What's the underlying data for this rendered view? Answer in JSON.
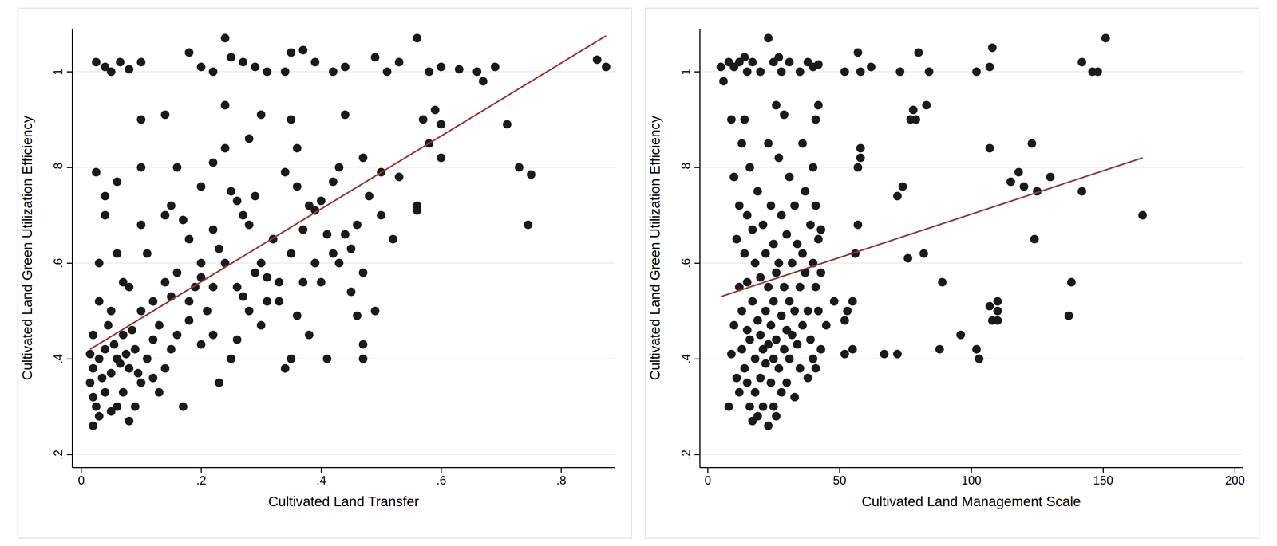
{
  "chart_data": [
    {
      "type": "scatter",
      "x_label": "Cultivated Land Transfer",
      "y_label": "Cultivated Land Green Utilization Efficiency",
      "xlim": [
        -0.015,
        0.89
      ],
      "ylim": [
        0.173,
        1.09
      ],
      "xticks": [
        0,
        {
          "value": 0.2,
          "label": ".2"
        },
        {
          "value": 0.4,
          "label": ".4"
        },
        {
          "value": 0.6,
          "label": ".6"
        },
        {
          "value": 0.8,
          "label": ".8"
        }
      ],
      "yticks": [
        {
          "value": 0.2,
          "label": ".2"
        },
        {
          "value": 0.4,
          "label": ".4"
        },
        {
          "value": 0.6,
          "label": ".6"
        },
        {
          "value": 0.8,
          "label": ".8"
        },
        1
      ],
      "grid": true,
      "series": [
        {
          "type": "scatter",
          "color": "#1a1a1a",
          "marker": "circle",
          "x": [
            0.025,
            0.04,
            0.05,
            0.065,
            0.08,
            0.1,
            0.18,
            0.2,
            0.22,
            0.24,
            0.25,
            0.27,
            0.29,
            0.31,
            0.34,
            0.35,
            0.37,
            0.39,
            0.42,
            0.44,
            0.49,
            0.51,
            0.53,
            0.56,
            0.58,
            0.6,
            0.63,
            0.66,
            0.67,
            0.69,
            0.86,
            0.875,
            0.025,
            0.04,
            0.04,
            0.06,
            0.1,
            0.1,
            0.14,
            0.16,
            0.24,
            0.24,
            0.3,
            0.35,
            0.36,
            0.44,
            0.57,
            0.59,
            0.6,
            0.71,
            0.73,
            0.75,
            0.745,
            0.58,
            0.6,
            0.56,
            0.56,
            0.53,
            0.5,
            0.47,
            0.43,
            0.28,
            0.22,
            0.03,
            0.06,
            0.07,
            0.08,
            0.1,
            0.11,
            0.12,
            0.14,
            0.15,
            0.17,
            0.18,
            0.2,
            0.2,
            0.22,
            0.23,
            0.25,
            0.26,
            0.27,
            0.28,
            0.29,
            0.3,
            0.31,
            0.32,
            0.33,
            0.34,
            0.35,
            0.36,
            0.37,
            0.38,
            0.39,
            0.4,
            0.41,
            0.42,
            0.43,
            0.45,
            0.46,
            0.47,
            0.48,
            0.5,
            0.52,
            0.45,
            0.46,
            0.47,
            0.47,
            0.49,
            0.41,
            0.38,
            0.35,
            0.34,
            0.3,
            0.27,
            0.26,
            0.25,
            0.23,
            0.22,
            0.21,
            0.2,
            0.19,
            0.18,
            0.17,
            0.16,
            0.15,
            0.15,
            0.14,
            0.13,
            0.12,
            0.12,
            0.11,
            0.1,
            0.1,
            0.09,
            0.09,
            0.08,
            0.08,
            0.07,
            0.07,
            0.06,
            0.06,
            0.05,
            0.05,
            0.05,
            0.04,
            0.04,
            0.03,
            0.03,
            0.03,
            0.02,
            0.02,
            0.02,
            0.02,
            0.015,
            0.015,
            0.025,
            0.035,
            0.045,
            0.055,
            0.065,
            0.075,
            0.085,
            0.095,
            0.13,
            0.14,
            0.16,
            0.18,
            0.2,
            0.22,
            0.24,
            0.26,
            0.28,
            0.29,
            0.31,
            0.33,
            0.36,
            0.37,
            0.39,
            0.4,
            0.42,
            0.44
          ],
          "values": [
            1.02,
            1.01,
            1.0,
            1.02,
            1.005,
            1.02,
            1.04,
            1.01,
            1.0,
            1.07,
            1.03,
            1.02,
            1.01,
            1.0,
            1.0,
            1.04,
            1.045,
            1.02,
            1.0,
            1.01,
            1.03,
            1.0,
            1.02,
            1.07,
            1.0,
            1.01,
            1.005,
            1.0,
            0.98,
            1.01,
            1.025,
            1.01,
            0.79,
            0.74,
            0.7,
            0.77,
            0.9,
            0.8,
            0.91,
            0.8,
            0.93,
            0.84,
            0.91,
            0.9,
            0.84,
            0.91,
            0.9,
            0.92,
            0.89,
            0.89,
            0.8,
            0.785,
            0.68,
            0.85,
            0.82,
            0.72,
            0.71,
            0.78,
            0.79,
            0.82,
            0.8,
            0.86,
            0.81,
            0.6,
            0.62,
            0.56,
            0.55,
            0.68,
            0.62,
            0.52,
            0.7,
            0.72,
            0.69,
            0.65,
            0.76,
            0.6,
            0.67,
            0.63,
            0.75,
            0.73,
            0.7,
            0.68,
            0.74,
            0.6,
            0.57,
            0.65,
            0.52,
            0.79,
            0.62,
            0.76,
            0.67,
            0.72,
            0.71,
            0.73,
            0.66,
            0.77,
            0.6,
            0.63,
            0.68,
            0.58,
            0.74,
            0.7,
            0.65,
            0.54,
            0.49,
            0.43,
            0.4,
            0.5,
            0.4,
            0.45,
            0.4,
            0.38,
            0.47,
            0.53,
            0.55,
            0.4,
            0.35,
            0.45,
            0.5,
            0.43,
            0.55,
            0.48,
            0.3,
            0.45,
            0.42,
            0.53,
            0.38,
            0.47,
            0.44,
            0.36,
            0.4,
            0.5,
            0.35,
            0.3,
            0.42,
            0.27,
            0.38,
            0.45,
            0.33,
            0.4,
            0.3,
            0.5,
            0.37,
            0.29,
            0.42,
            0.33,
            0.52,
            0.4,
            0.28,
            0.45,
            0.38,
            0.32,
            0.26,
            0.35,
            0.41,
            0.3,
            0.36,
            0.47,
            0.43,
            0.39,
            0.41,
            0.46,
            0.37,
            0.33,
            0.56,
            0.58,
            0.52,
            0.57,
            0.55,
            0.6,
            0.44,
            0.5,
            0.58,
            0.52,
            0.56,
            0.49,
            0.56,
            0.6,
            0.56,
            0.62,
            0.66
          ]
        },
        {
          "type": "line",
          "color": "#973835",
          "line_style": "solid",
          "x": [
            0.015,
            0.875
          ],
          "values": [
            0.42,
            1.075
          ]
        }
      ]
    },
    {
      "type": "scatter",
      "x_label": "Cultivated Land Management Scale",
      "y_label": "Cultivated Land Green Utilization Efficiency",
      "xlim": [
        -3,
        203
      ],
      "ylim": [
        0.173,
        1.09
      ],
      "xticks": [
        0,
        50,
        100,
        150,
        200
      ],
      "yticks": [
        {
          "value": 0.2,
          "label": ".2"
        },
        {
          "value": 0.4,
          "label": ".4"
        },
        {
          "value": 0.6,
          "label": ".6"
        },
        {
          "value": 0.8,
          "label": ".8"
        },
        1
      ],
      "grid": true,
      "series": [
        {
          "type": "scatter",
          "color": "#1a1a1a",
          "marker": "circle",
          "x": [
            5,
            6,
            8,
            10,
            12,
            14,
            15,
            17,
            20,
            23,
            25,
            27,
            28,
            31,
            35,
            38,
            40,
            42,
            52,
            57,
            58,
            62,
            73,
            80,
            84,
            102,
            107,
            108,
            142,
            146,
            148,
            151,
            56,
            57,
            57,
            58,
            58,
            72,
            74,
            76,
            77,
            78,
            79,
            82,
            83,
            89,
            96,
            102,
            103,
            107,
            107,
            108,
            110,
            110,
            110,
            115,
            118,
            120,
            123,
            124,
            125,
            130,
            137,
            138,
            142,
            165,
            52,
            53,
            55,
            52,
            67,
            72,
            88,
            55,
            45,
            48,
            8,
            9,
            9,
            10,
            10,
            11,
            11,
            12,
            12,
            12,
            13,
            13,
            13,
            14,
            14,
            14,
            15,
            15,
            15,
            15,
            16,
            16,
            16,
            17,
            17,
            17,
            18,
            18,
            18,
            19,
            19,
            19,
            20,
            20,
            20,
            21,
            21,
            21,
            22,
            22,
            22,
            23,
            23,
            23,
            23,
            24,
            24,
            24,
            25,
            25,
            25,
            25,
            26,
            26,
            26,
            26,
            27,
            27,
            27,
            28,
            28,
            28,
            29,
            29,
            29,
            30,
            30,
            30,
            31,
            31,
            31,
            32,
            32,
            33,
            33,
            33,
            34,
            34,
            35,
            35,
            36,
            36,
            36,
            37,
            37,
            38,
            38,
            39,
            39,
            40,
            40,
            40,
            41,
            41,
            41,
            41,
            42,
            42,
            42,
            43,
            43,
            43
          ],
          "values": [
            1.01,
            0.98,
            1.02,
            1.01,
            1.02,
            1.03,
            1.0,
            1.02,
            1.0,
            1.07,
            1.02,
            1.03,
            1.0,
            1.02,
            1.0,
            1.02,
            1.01,
            1.015,
            1.0,
            1.04,
            1.0,
            1.01,
            1.0,
            1.04,
            1.0,
            1.0,
            1.01,
            1.05,
            1.02,
            1.0,
            1.0,
            1.07,
            0.62,
            0.8,
            0.68,
            0.84,
            0.82,
            0.74,
            0.76,
            0.61,
            0.9,
            0.92,
            0.9,
            0.62,
            0.93,
            0.56,
            0.45,
            0.42,
            0.4,
            0.84,
            0.51,
            0.48,
            0.52,
            0.5,
            0.48,
            0.77,
            0.79,
            0.76,
            0.85,
            0.65,
            0.75,
            0.78,
            0.49,
            0.56,
            0.75,
            0.7,
            0.48,
            0.5,
            0.42,
            0.41,
            0.41,
            0.41,
            0.42,
            0.52,
            0.47,
            0.52,
            0.3,
            0.41,
            0.9,
            0.78,
            0.47,
            0.65,
            0.36,
            0.72,
            0.55,
            0.33,
            0.85,
            0.5,
            0.42,
            0.9,
            0.62,
            0.38,
            0.7,
            0.56,
            0.46,
            0.35,
            0.8,
            0.44,
            0.3,
            0.67,
            0.52,
            0.27,
            0.6,
            0.4,
            0.33,
            0.75,
            0.48,
            0.28,
            0.57,
            0.45,
            0.36,
            0.68,
            0.42,
            0.3,
            0.62,
            0.5,
            0.39,
            0.85,
            0.55,
            0.43,
            0.26,
            0.72,
            0.47,
            0.35,
            0.64,
            0.52,
            0.4,
            0.3,
            0.93,
            0.58,
            0.44,
            0.28,
            0.82,
            0.6,
            0.38,
            0.7,
            0.49,
            0.33,
            0.91,
            0.55,
            0.42,
            0.66,
            0.46,
            0.35,
            0.78,
            0.52,
            0.4,
            0.6,
            0.45,
            0.72,
            0.5,
            0.32,
            0.64,
            0.43,
            0.55,
            0.38,
            0.85,
            0.62,
            0.47,
            0.75,
            0.58,
            0.5,
            0.36,
            0.68,
            0.44,
            0.8,
            0.6,
            0.4,
            0.9,
            0.72,
            0.55,
            0.38,
            0.93,
            0.65,
            0.5,
            0.58,
            0.42,
            0.67
          ]
        },
        {
          "type": "line",
          "color": "#973835",
          "line_style": "solid",
          "x": [
            5,
            165
          ],
          "values": [
            0.53,
            0.82
          ]
        }
      ]
    }
  ]
}
